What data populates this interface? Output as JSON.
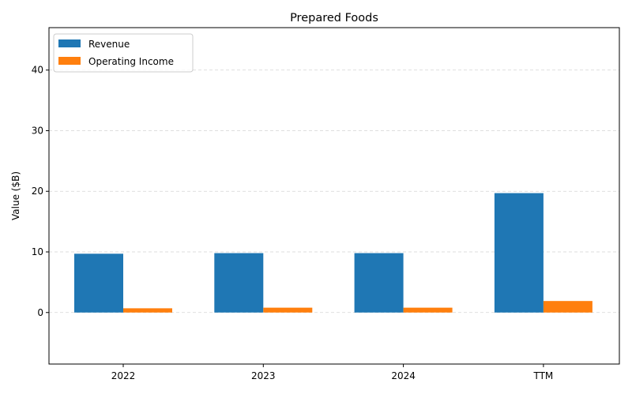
{
  "chart_data": {
    "type": "bar",
    "title": "Prepared Foods",
    "xlabel": "",
    "ylabel": "Value ($B)",
    "categories": [
      "2022",
      "2023",
      "2024",
      "TTM"
    ],
    "series": [
      {
        "name": "Revenue",
        "color": "#1f77b4",
        "values": [
          9.7,
          9.8,
          9.8,
          19.7
        ]
      },
      {
        "name": "Operating Income",
        "color": "#ff7f0e",
        "values": [
          0.7,
          0.8,
          0.8,
          1.9
        ]
      }
    ],
    "ylim": [
      -8.5,
      47
    ],
    "yticks": [
      0,
      10,
      20,
      30,
      40
    ],
    "grid": "y-dashed",
    "legend_position": "top-left"
  }
}
